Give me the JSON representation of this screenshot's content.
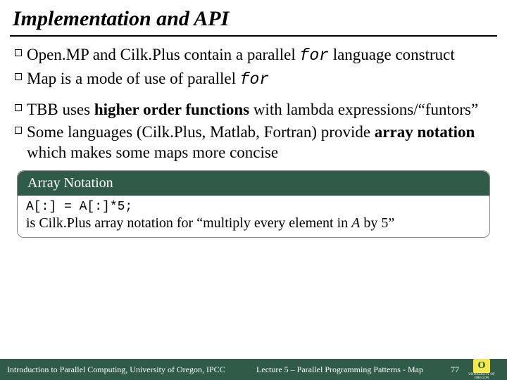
{
  "title": "Implementation and API",
  "bullets": [
    {
      "pre": "Open.MP and Cilk.Plus contain a parallel ",
      "code": "for",
      "post": " language construct"
    },
    {
      "pre": "Map is a mode of use of parallel ",
      "code": "for",
      "post": ""
    },
    {
      "pre": "TBB uses ",
      "bold": "higher order functions",
      "post": " with lambda expressions/“funtors”"
    },
    {
      "pre": "Some languages (Cilk.Plus, Matlab, Fortran) provide ",
      "bold": "array notation",
      "post": " which makes some maps more concise"
    }
  ],
  "callout": {
    "header": "Array Notation",
    "code": "A[:] = A[:]*5;",
    "caption_pre": "is Cilk.Plus array notation for “multiply every element in ",
    "caption_em": "A",
    "caption_post": " by 5”"
  },
  "footer": {
    "left": "Introduction to Parallel Computing, University of Oregon, IPCC",
    "center": "Lecture 5 – Parallel Programming Patterns - Map",
    "page": "77",
    "logo_letter": "O",
    "logo_sub": "UNIVERSITY OF OREGON"
  },
  "colors": {
    "header_green": "#2f5b48",
    "logo_yellow": "#f7e94a",
    "logo_text": "#0b4a2f"
  }
}
